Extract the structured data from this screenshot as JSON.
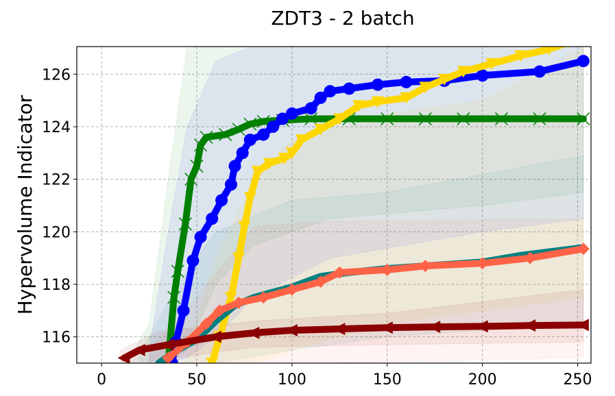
{
  "chart_data": {
    "type": "line",
    "title": "ZDT3 - 2 batch",
    "xlabel": "",
    "ylabel": "Hypervolume Indicator",
    "xlim": [
      -13,
      257
    ],
    "ylim": [
      115,
      127.05
    ],
    "xticks": [
      0,
      50,
      100,
      150,
      200,
      250
    ],
    "yticks": [
      116,
      118,
      120,
      122,
      124,
      126
    ],
    "grid": true,
    "legend": "none",
    "series": [
      {
        "name": "green",
        "color": "#008000",
        "marker": "x",
        "points": [
          [
            35,
            115
          ],
          [
            38,
            117.5
          ],
          [
            40,
            118.5
          ],
          [
            44,
            120.3
          ],
          [
            47,
            122
          ],
          [
            50,
            122.5
          ],
          [
            52,
            123.3
          ],
          [
            55,
            123.6
          ],
          [
            65,
            123.7
          ],
          [
            72,
            123.9
          ],
          [
            78,
            124.1
          ],
          [
            85,
            124.2
          ],
          [
            95,
            124.25
          ],
          [
            110,
            124.3
          ],
          [
            130,
            124.3
          ],
          [
            150,
            124.3
          ],
          [
            170,
            124.3
          ],
          [
            190,
            124.3
          ],
          [
            210,
            124.3
          ],
          [
            230,
            124.3
          ],
          [
            253,
            124.3
          ]
        ],
        "band": [
          [
            15,
            115,
            115.2
          ],
          [
            25,
            115,
            116.5
          ],
          [
            35,
            115,
            122
          ],
          [
            45,
            115.5,
            127.1
          ],
          [
            60,
            118,
            127.1
          ],
          [
            80,
            119.5,
            127.1
          ],
          [
            120,
            120.5,
            127.1
          ],
          [
            200,
            121,
            127.1
          ],
          [
            253,
            121.5,
            127.1
          ]
        ]
      },
      {
        "name": "blue",
        "color": "#0000ff",
        "marker": "o",
        "points": [
          [
            37,
            115
          ],
          [
            39,
            115.8
          ],
          [
            43,
            117
          ],
          [
            48,
            118.9
          ],
          [
            52,
            119.8
          ],
          [
            58,
            120.5
          ],
          [
            63,
            121.2
          ],
          [
            68,
            121.8
          ],
          [
            70,
            122.5
          ],
          [
            74,
            123
          ],
          [
            78,
            123.5
          ],
          [
            85,
            123.7
          ],
          [
            90,
            124
          ],
          [
            95,
            124.3
          ],
          [
            100,
            124.5
          ],
          [
            110,
            124.7
          ],
          [
            115,
            125.1
          ],
          [
            120,
            125.35
          ],
          [
            130,
            125.45
          ],
          [
            145,
            125.6
          ],
          [
            160,
            125.7
          ],
          [
            180,
            125.75
          ],
          [
            200,
            125.95
          ],
          [
            230,
            126.1
          ],
          [
            253,
            126.5
          ]
        ],
        "band": [
          [
            25,
            115,
            115.5
          ],
          [
            35,
            115,
            120
          ],
          [
            45,
            115.2,
            124
          ],
          [
            60,
            116,
            126.5
          ],
          [
            80,
            117.5,
            127.1
          ],
          [
            120,
            119,
            127.1
          ],
          [
            200,
            120,
            127.1
          ],
          [
            253,
            120.5,
            127.1
          ]
        ]
      },
      {
        "name": "gold",
        "color": "#ffd700",
        "marker": "v",
        "points": [
          [
            58,
            115
          ],
          [
            62,
            116
          ],
          [
            68,
            117.5
          ],
          [
            72,
            119
          ],
          [
            75,
            120.2
          ],
          [
            78,
            121.3
          ],
          [
            82,
            122.3
          ],
          [
            88,
            122.6
          ],
          [
            96,
            122.8
          ],
          [
            100,
            123
          ],
          [
            105,
            123.5
          ],
          [
            115,
            123.9
          ],
          [
            125,
            124.3
          ],
          [
            135,
            124.8
          ],
          [
            145,
            124.95
          ],
          [
            160,
            125.1
          ],
          [
            170,
            125.5
          ],
          [
            180,
            125.8
          ],
          [
            190,
            126.1
          ],
          [
            205,
            126.4
          ],
          [
            220,
            126.7
          ],
          [
            235,
            126.95
          ],
          [
            245,
            127.2
          ]
        ],
        "band": [
          [
            45,
            115,
            115.3
          ],
          [
            60,
            115,
            119
          ],
          [
            80,
            115,
            122
          ],
          [
            100,
            115.5,
            123.5
          ],
          [
            150,
            116.5,
            124.5
          ],
          [
            200,
            117,
            125
          ],
          [
            253,
            117.5,
            127
          ]
        ]
      },
      {
        "name": "teal",
        "color": "#008080",
        "marker": "none",
        "points": [
          [
            30,
            115
          ],
          [
            40,
            115.5
          ],
          [
            50,
            115.9
          ],
          [
            60,
            116.6
          ],
          [
            70,
            117.2
          ],
          [
            80,
            117.5
          ],
          [
            100,
            117.9
          ],
          [
            115,
            118.3
          ],
          [
            130,
            118.45
          ],
          [
            150,
            118.6
          ],
          [
            170,
            118.7
          ],
          [
            200,
            118.85
          ],
          [
            220,
            119.1
          ],
          [
            253,
            119.4
          ]
        ],
        "band": [
          [
            20,
            115,
            115.3
          ],
          [
            40,
            115,
            118
          ],
          [
            60,
            115,
            120
          ],
          [
            100,
            115.5,
            121.2
          ],
          [
            150,
            116,
            121.5
          ],
          [
            253,
            116.5,
            122.9
          ]
        ]
      },
      {
        "name": "tomato",
        "color": "#ff6347",
        "marker": "D",
        "points": [
          [
            35,
            115.2
          ],
          [
            45,
            115.8
          ],
          [
            55,
            116.5
          ],
          [
            62,
            117
          ],
          [
            72,
            117.3
          ],
          [
            85,
            117.5
          ],
          [
            100,
            117.8
          ],
          [
            115,
            118.1
          ],
          [
            125,
            118.45
          ],
          [
            150,
            118.55
          ],
          [
            170,
            118.7
          ],
          [
            200,
            118.8
          ],
          [
            225,
            119
          ],
          [
            253,
            119.35
          ]
        ],
        "band": [
          [
            25,
            115,
            115.5
          ],
          [
            50,
            115,
            117.5
          ],
          [
            80,
            115,
            120.2
          ],
          [
            120,
            115,
            120.4
          ],
          [
            253,
            115.2,
            120.5
          ]
        ]
      },
      {
        "name": "darkred",
        "color": "#8b0000",
        "marker": "<",
        "points": [
          [
            12,
            115.2
          ],
          [
            20,
            115.5
          ],
          [
            35,
            115.7
          ],
          [
            60,
            116
          ],
          [
            80,
            116.15
          ],
          [
            100,
            116.25
          ],
          [
            125,
            116.3
          ],
          [
            150,
            116.35
          ],
          [
            175,
            116.38
          ],
          [
            200,
            116.4
          ],
          [
            225,
            116.43
          ],
          [
            253,
            116.45
          ]
        ],
        "band": [
          [
            10,
            115,
            115.5
          ],
          [
            30,
            115.1,
            116.2
          ],
          [
            80,
            115.6,
            116.6
          ],
          [
            150,
            115.7,
            116.9
          ],
          [
            253,
            115.8,
            117.8
          ]
        ]
      }
    ]
  }
}
